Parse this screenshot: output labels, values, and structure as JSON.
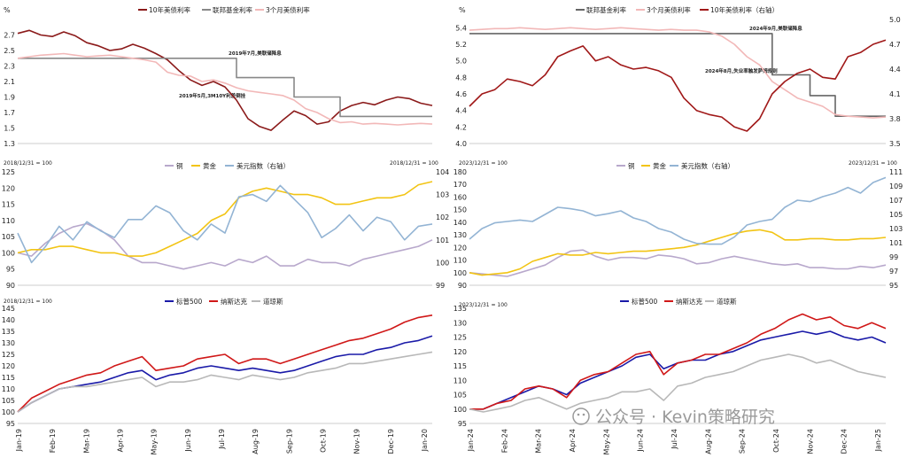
{
  "watermark": {
    "text": "公众号 · Kevin策略研究"
  },
  "chart_data": [
    {
      "type": "line",
      "unit_label": "%",
      "legend": [
        "10年美债利率",
        "联邦基金利率",
        "3个月美债利率"
      ],
      "ylim": [
        1.3,
        2.9
      ],
      "yticks": [
        "2.7",
        "2.5",
        "2.3",
        "2.1",
        "1.9",
        "1.7",
        "1.5",
        "1.3"
      ],
      "annotations": [
        "2019年7月,美联储降息",
        "2019年5月,3M10Y利差倒挂"
      ],
      "series": [
        {
          "name": "10年美债利率",
          "color": "#8b1a1a",
          "values": [
            2.72,
            2.76,
            2.7,
            2.68,
            2.74,
            2.69,
            2.6,
            2.56,
            2.5,
            2.52,
            2.58,
            2.53,
            2.46,
            2.38,
            2.24,
            2.12,
            2.05,
            2.1,
            2.03,
            1.86,
            1.62,
            1.52,
            1.47,
            1.6,
            1.72,
            1.66,
            1.55,
            1.58,
            1.72,
            1.79,
            1.83,
            1.8,
            1.86,
            1.9,
            1.88,
            1.82,
            1.79
          ]
        },
        {
          "name": "联邦基金利率",
          "color": "#888888",
          "values": [
            2.4,
            2.4,
            2.4,
            2.4,
            2.4,
            2.4,
            2.4,
            2.4,
            2.4,
            2.4,
            2.4,
            2.4,
            2.4,
            2.4,
            2.4,
            2.4,
            2.4,
            2.4,
            2.4,
            2.15,
            2.15,
            2.15,
            2.15,
            2.15,
            1.9,
            1.9,
            1.9,
            1.9,
            1.65,
            1.65,
            1.65,
            1.65,
            1.65,
            1.65,
            1.65,
            1.65,
            1.65
          ]
        },
        {
          "name": "3个月美债利率",
          "color": "#f2b8b8",
          "values": [
            2.4,
            2.42,
            2.44,
            2.45,
            2.46,
            2.44,
            2.42,
            2.43,
            2.44,
            2.42,
            2.4,
            2.38,
            2.35,
            2.22,
            2.18,
            2.17,
            2.1,
            2.12,
            2.08,
            2.02,
            1.98,
            1.96,
            1.94,
            1.92,
            1.86,
            1.75,
            1.7,
            1.62,
            1.57,
            1.58,
            1.55,
            1.56,
            1.55,
            1.54,
            1.55,
            1.56,
            1.55
          ]
        }
      ]
    },
    {
      "type": "line",
      "unit_label": "%",
      "legend": [
        "联邦基金利率",
        "3个月美债利率",
        "10年美债利率（右轴）"
      ],
      "ylim": [
        4.0,
        5.5
      ],
      "yticks": [
        "5.4",
        "5.2",
        "5.0",
        "4.8",
        "4.6",
        "4.4",
        "4.2",
        "4.0"
      ],
      "y2ticks": [
        "5.0",
        "4.7",
        "4.4",
        "4.1",
        "3.8",
        "3.5"
      ],
      "annotations": [
        "2024年9月,美联储降息",
        "2024年8月,失业率触发萨姆规则"
      ],
      "series": [
        {
          "name": "联邦基金利率",
          "color": "#666666",
          "values": [
            5.33,
            5.33,
            5.33,
            5.33,
            5.33,
            5.33,
            5.33,
            5.33,
            5.33,
            5.33,
            5.33,
            5.33,
            5.33,
            5.33,
            5.33,
            5.33,
            5.33,
            5.33,
            5.33,
            5.33,
            5.33,
            5.33,
            5.33,
            5.33,
            4.83,
            4.83,
            4.83,
            4.58,
            4.58,
            4.33,
            4.33,
            4.33,
            4.33,
            4.33
          ]
        },
        {
          "name": "3个月美债利率",
          "color": "#f2b8b8",
          "values": [
            5.37,
            5.38,
            5.39,
            5.39,
            5.4,
            5.39,
            5.38,
            5.39,
            5.4,
            5.39,
            5.38,
            5.39,
            5.4,
            5.39,
            5.38,
            5.37,
            5.38,
            5.37,
            5.37,
            5.35,
            5.3,
            5.2,
            5.05,
            4.95,
            4.75,
            4.65,
            4.55,
            4.5,
            4.45,
            4.35,
            4.33,
            4.32,
            4.31,
            4.32
          ]
        },
        {
          "name": "10年美债利率（右轴）",
          "color": "#a01818",
          "values": [
            3.95,
            4.1,
            4.15,
            4.28,
            4.25,
            4.2,
            4.33,
            4.55,
            4.62,
            4.68,
            4.5,
            4.55,
            4.45,
            4.4,
            4.42,
            4.38,
            4.3,
            4.05,
            3.9,
            3.85,
            3.82,
            3.7,
            3.65,
            3.8,
            4.1,
            4.25,
            4.35,
            4.4,
            4.3,
            4.28,
            4.55,
            4.6,
            4.7,
            4.75
          ]
        }
      ]
    },
    {
      "type": "line",
      "base_label": "2018/12/31 = 100",
      "base_label_right": "2018/12/31 = 100",
      "legend": [
        "铜",
        "黄金",
        "美元指数（右轴）"
      ],
      "ylim": [
        90,
        125
      ],
      "yticks": [
        "125",
        "120",
        "115",
        "110",
        "105",
        "100",
        "95",
        "90"
      ],
      "y2ticks": [
        "104",
        "103",
        "102",
        "101",
        "100",
        "99"
      ],
      "series": [
        {
          "name": "铜",
          "color": "#b8a8cc",
          "values": [
            100,
            99,
            103,
            106,
            108,
            109,
            107,
            104,
            99,
            97,
            97,
            96,
            95,
            96,
            97,
            96,
            98,
            97,
            99,
            96,
            96,
            98,
            97,
            97,
            96,
            98,
            99,
            100,
            101,
            102,
            104
          ]
        },
        {
          "name": "黄金",
          "color": "#f2c414",
          "values": [
            100,
            101,
            101,
            102,
            102,
            101,
            100,
            100,
            99,
            99,
            100,
            102,
            104,
            106,
            110,
            112,
            117,
            119,
            120,
            119,
            118,
            118,
            117,
            115,
            115,
            116,
            117,
            117,
            118,
            121,
            122
          ]
        },
        {
          "name": "美元指数（右轴）",
          "color": "#93b4d4",
          "values": [
            101.3,
            100.0,
            100.7,
            101.6,
            101.0,
            101.8,
            101.4,
            101.1,
            101.9,
            101.9,
            102.5,
            102.2,
            101.4,
            101.0,
            101.7,
            101.3,
            102.9,
            103.0,
            102.7,
            103.4,
            102.8,
            102.2,
            101.1,
            101.5,
            102.1,
            101.4,
            102.0,
            101.8,
            101.0,
            101.6,
            101.7
          ]
        }
      ]
    },
    {
      "type": "line",
      "base_label": "2023/12/31 = 100",
      "base_label_right": "2023/12/31 = 100",
      "legend": [
        "铜",
        "黄金",
        "美元指数（右轴）"
      ],
      "ylim": [
        90,
        180
      ],
      "yticks": [
        "180",
        "170",
        "160",
        "150",
        "140",
        "130",
        "120",
        "110",
        "100",
        "90"
      ],
      "y2ticks": [
        "111",
        "109",
        "107",
        "105",
        "103",
        "101",
        "99",
        "97",
        "95"
      ],
      "series": [
        {
          "name": "铜",
          "color": "#b8a8cc",
          "values": [
            100,
            99,
            98,
            97,
            100,
            103,
            106,
            112,
            117,
            118,
            113,
            110,
            112,
            112,
            111,
            114,
            113,
            111,
            107,
            108,
            111,
            113,
            111,
            109,
            107,
            106,
            107,
            104,
            104,
            103,
            103,
            105,
            104,
            106
          ]
        },
        {
          "name": "黄金",
          "color": "#f2c414",
          "values": [
            100,
            98,
            99,
            100,
            103,
            109,
            112,
            115,
            114,
            114,
            116,
            115,
            116,
            117,
            117,
            118,
            119,
            120,
            122,
            125,
            128,
            131,
            133,
            134,
            132,
            126,
            126,
            127,
            127,
            126,
            126,
            127,
            127,
            128
          ]
        },
        {
          "name": "美元指数（右轴）",
          "color": "#93b4d4",
          "values": [
            101.5,
            103.0,
            103.8,
            104.0,
            104.2,
            104.0,
            105.0,
            106.0,
            105.8,
            105.5,
            104.8,
            105.1,
            105.5,
            104.5,
            104.0,
            103.0,
            102.5,
            101.5,
            100.9,
            100.8,
            100.8,
            101.8,
            103.5,
            104.0,
            104.3,
            106.0,
            107.0,
            106.8,
            107.5,
            108.0,
            108.8,
            108.0,
            109.5,
            110.2
          ]
        }
      ]
    },
    {
      "type": "line",
      "base_label": "2018/12/31 = 100",
      "legend": [
        "标普500",
        "纳斯达克",
        "道琼斯"
      ],
      "ylim": [
        95,
        145
      ],
      "yticks": [
        "145",
        "140",
        "135",
        "130",
        "125",
        "120",
        "115",
        "110",
        "105",
        "100",
        "95"
      ],
      "xticks": [
        "Jan-19",
        "Feb-19",
        "Mar-19",
        "Apr-19",
        "May-19",
        "Jun-19",
        "Jul-19",
        "Aug-19",
        "Sep-19",
        "Oct-19",
        "Nov-19",
        "Dec-19",
        "Jan-20"
      ],
      "series": [
        {
          "name": "标普500",
          "color": "#1a1aa8",
          "values": [
            100,
            104,
            107,
            110,
            111,
            112,
            113,
            115,
            117,
            118,
            114,
            116,
            117,
            119,
            120,
            119,
            118,
            119,
            118,
            117,
            118,
            120,
            122,
            124,
            125,
            125,
            127,
            128,
            130,
            131,
            133
          ]
        },
        {
          "name": "纳斯达克",
          "color": "#d01818",
          "values": [
            100,
            106,
            109,
            112,
            114,
            116,
            117,
            120,
            122,
            124,
            118,
            119,
            120,
            123,
            124,
            125,
            121,
            123,
            123,
            121,
            123,
            125,
            127,
            129,
            131,
            132,
            134,
            136,
            139,
            141,
            142
          ]
        },
        {
          "name": "道琼斯",
          "color": "#b8b8b8",
          "values": [
            100,
            104,
            107,
            110,
            111,
            111,
            112,
            113,
            114,
            115,
            111,
            113,
            113,
            114,
            116,
            115,
            114,
            116,
            115,
            114,
            115,
            117,
            118,
            119,
            121,
            121,
            122,
            123,
            124,
            125,
            126
          ]
        }
      ]
    },
    {
      "type": "line",
      "base_label": "2023/12/31 = 100",
      "legend": [
        "标普500",
        "纳斯达克",
        "道琼斯"
      ],
      "ylim": [
        95,
        135
      ],
      "yticks": [
        "135",
        "130",
        "125",
        "120",
        "115",
        "110",
        "105",
        "100",
        "95"
      ],
      "xticks": [
        "Jan-24",
        "Feb-24",
        "Mar-24",
        "Apr-24",
        "May-24",
        "Jun-24",
        "Jul-24",
        "Aug-24",
        "Sep-24",
        "Oct-24",
        "Nov-24",
        "Dec-24",
        "Jan-25"
      ],
      "series": [
        {
          "name": "标普500",
          "color": "#1a1aa8",
          "values": [
            100,
            100,
            102,
            104,
            106,
            108,
            107,
            105,
            109,
            111,
            113,
            115,
            118,
            119,
            114,
            116,
            117,
            117,
            119,
            120,
            122,
            124,
            125,
            126,
            127,
            126,
            127,
            125,
            124,
            125,
            123
          ]
        },
        {
          "name": "纳斯达克",
          "color": "#d01818",
          "values": [
            100,
            100,
            102,
            103,
            107,
            108,
            107,
            104,
            110,
            112,
            113,
            116,
            119,
            120,
            112,
            116,
            117,
            119,
            119,
            121,
            123,
            126,
            128,
            131,
            133,
            131,
            132,
            129,
            128,
            130,
            128
          ]
        },
        {
          "name": "道琼斯",
          "color": "#b8b8b8",
          "values": [
            100,
            99,
            100,
            101,
            103,
            104,
            102,
            100,
            102,
            103,
            104,
            106,
            106,
            107,
            103,
            108,
            109,
            111,
            112,
            113,
            115,
            117,
            118,
            119,
            118,
            116,
            117,
            115,
            113,
            112,
            111
          ]
        }
      ]
    }
  ]
}
